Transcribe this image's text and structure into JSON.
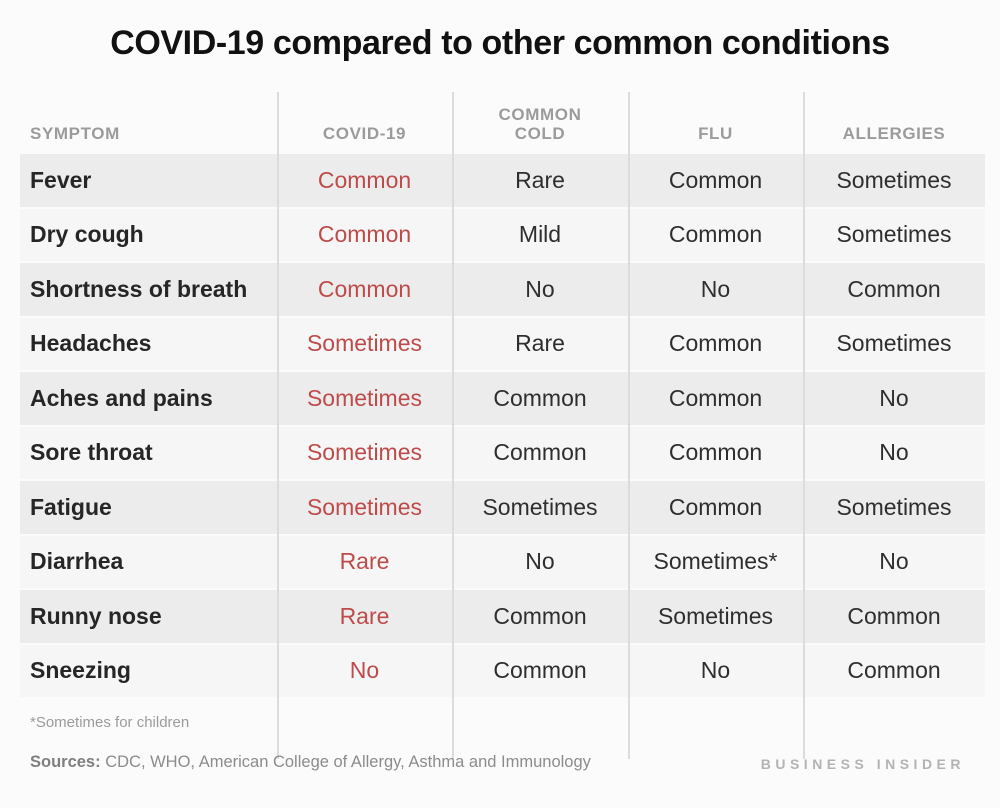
{
  "title": "COVID-19 compared to other common conditions",
  "colors": {
    "background": "#fbfbfb",
    "row_dark": "#ececec",
    "row_light": "#f6f6f6",
    "divider": "#dcdcdc",
    "header_text": "#9b9b9b",
    "body_text": "#2e2e2e",
    "covid_value_red": "#bf4a4a",
    "muted_footer": "#8c8c8c",
    "brand_gray": "#b3b3b3"
  },
  "table": {
    "headers": [
      "SYMPTOM",
      "COVID-19",
      "COMMON COLD",
      "FLU",
      "ALLERGIES"
    ],
    "rows": [
      {
        "symptom": "Fever",
        "values": {
          "covid19": "Common",
          "common_cold": "Rare",
          "flu": "Common",
          "allergies": "Sometimes"
        }
      },
      {
        "symptom": "Dry cough",
        "values": {
          "covid19": "Common",
          "common_cold": "Mild",
          "flu": "Common",
          "allergies": "Sometimes"
        }
      },
      {
        "symptom": "Shortness of breath",
        "values": {
          "covid19": "Common",
          "common_cold": "No",
          "flu": "No",
          "allergies": "Common"
        }
      },
      {
        "symptom": "Headaches",
        "values": {
          "covid19": "Sometimes",
          "common_cold": "Rare",
          "flu": "Common",
          "allergies": "Sometimes"
        }
      },
      {
        "symptom": "Aches and pains",
        "values": {
          "covid19": "Sometimes",
          "common_cold": "Common",
          "flu": "Common",
          "allergies": "No"
        }
      },
      {
        "symptom": "Sore throat",
        "values": {
          "covid19": "Sometimes",
          "common_cold": "Common",
          "flu": "Common",
          "allergies": "No"
        }
      },
      {
        "symptom": "Fatigue",
        "values": {
          "covid19": "Sometimes",
          "common_cold": "Sometimes",
          "flu": "Common",
          "allergies": "Sometimes"
        }
      },
      {
        "symptom": "Diarrhea",
        "values": {
          "covid19": "Rare",
          "common_cold": "No",
          "flu": "Sometimes*",
          "allergies": "No"
        }
      },
      {
        "symptom": "Runny nose",
        "values": {
          "covid19": "Rare",
          "common_cold": "Common",
          "flu": "Sometimes",
          "allergies": "Common"
        }
      },
      {
        "symptom": "Sneezing",
        "values": {
          "covid19": "No",
          "common_cold": "Common",
          "flu": "No",
          "allergies": "Common"
        }
      }
    ]
  },
  "footnote": "*Sometimes for children",
  "sources_label": "Sources:",
  "sources_text": " CDC, WHO,  American College of Allergy, Asthma and Immunology",
  "brand": "BUSINESS INSIDER",
  "chart_data": {
    "type": "table",
    "title": "COVID-19 compared to other common conditions",
    "columns": [
      "SYMPTOM",
      "COVID-19",
      "COMMON COLD",
      "FLU",
      "ALLERGIES"
    ],
    "rows": [
      [
        "Fever",
        "Common",
        "Rare",
        "Common",
        "Sometimes"
      ],
      [
        "Dry cough",
        "Common",
        "Mild",
        "Common",
        "Sometimes"
      ],
      [
        "Shortness of breath",
        "Common",
        "No",
        "No",
        "Common"
      ],
      [
        "Headaches",
        "Sometimes",
        "Rare",
        "Common",
        "Sometimes"
      ],
      [
        "Aches and pains",
        "Sometimes",
        "Common",
        "Common",
        "No"
      ],
      [
        "Sore throat",
        "Sometimes",
        "Common",
        "Common",
        "No"
      ],
      [
        "Fatigue",
        "Sometimes",
        "Sometimes",
        "Common",
        "Sometimes"
      ],
      [
        "Diarrhea",
        "Rare",
        "No",
        "Sometimes*",
        "No"
      ],
      [
        "Runny nose",
        "Rare",
        "Common",
        "Sometimes",
        "Common"
      ],
      [
        "Sneezing",
        "No",
        "Common",
        "No",
        "Common"
      ]
    ],
    "notes": [
      "*Sometimes for children",
      "Sources: CDC, WHO, American College of Allergy, Asthma and Immunology"
    ],
    "layout_hints": {
      "covid19_column_color": "#bf4a4a",
      "alternating_row_shading": true,
      "grid": "vertical column separators only"
    }
  }
}
